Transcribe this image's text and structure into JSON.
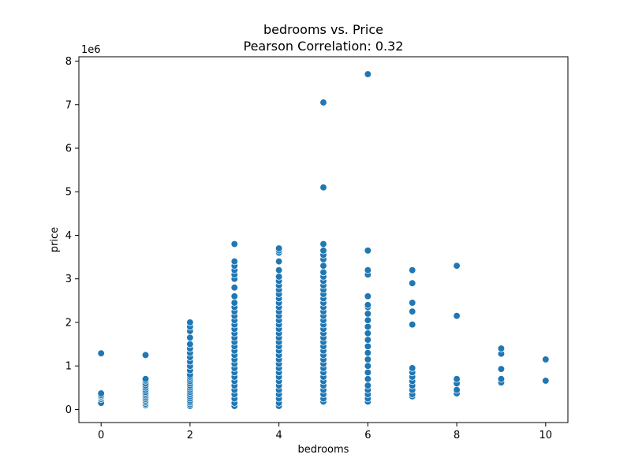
{
  "chart_data": {
    "type": "scatter",
    "title": "bedrooms vs. Price",
    "subtitle": "Pearson Correlation: 0.32",
    "xlabel": "bedrooms",
    "ylabel": "price",
    "y_offset_label": "1e6",
    "xlim": [
      -0.5,
      10.5
    ],
    "ylim": [
      -0.3,
      8.1
    ],
    "x_ticks": [
      0,
      2,
      4,
      6,
      8,
      10
    ],
    "y_ticks": [
      0,
      1,
      2,
      3,
      4,
      5,
      6,
      7,
      8
    ],
    "y_scale_factor": 1000000,
    "grid": false,
    "marker_color": "#1f77b4",
    "points": [
      {
        "x": 0,
        "y": [
          0.15,
          0.24,
          0.28,
          0.3,
          0.33,
          0.37,
          1.29
        ]
      },
      {
        "x": 1,
        "y": [
          0.1,
          0.13,
          0.17,
          0.2,
          0.24,
          0.28,
          0.32,
          0.36,
          0.4,
          0.45,
          0.5,
          0.55,
          0.6,
          0.66,
          0.7,
          1.25
        ]
      },
      {
        "x": 2,
        "y": [
          0.08,
          0.12,
          0.16,
          0.2,
          0.25,
          0.3,
          0.35,
          0.4,
          0.45,
          0.5,
          0.55,
          0.6,
          0.65,
          0.7,
          0.75,
          0.8,
          0.9,
          1.0,
          1.1,
          1.2,
          1.3,
          1.4,
          1.5,
          1.65,
          1.8,
          1.9,
          2.0
        ]
      },
      {
        "x": 3,
        "y": [
          0.08,
          0.15,
          0.25,
          0.35,
          0.45,
          0.55,
          0.65,
          0.75,
          0.85,
          0.95,
          1.05,
          1.15,
          1.25,
          1.35,
          1.45,
          1.55,
          1.65,
          1.75,
          1.85,
          1.95,
          2.05,
          2.15,
          2.25,
          2.35,
          2.45,
          2.6,
          2.8,
          3.0,
          3.1,
          3.2,
          3.3,
          3.4,
          3.8
        ]
      },
      {
        "x": 4,
        "y": [
          0.08,
          0.15,
          0.25,
          0.35,
          0.45,
          0.55,
          0.65,
          0.75,
          0.85,
          0.95,
          1.05,
          1.15,
          1.25,
          1.35,
          1.45,
          1.55,
          1.65,
          1.75,
          1.85,
          1.95,
          2.05,
          2.15,
          2.25,
          2.35,
          2.45,
          2.55,
          2.65,
          2.75,
          2.85,
          2.95,
          3.05,
          3.2,
          3.4,
          3.6,
          3.65,
          3.7
        ]
      },
      {
        "x": 5,
        "y": [
          0.18,
          0.25,
          0.35,
          0.45,
          0.55,
          0.65,
          0.75,
          0.85,
          0.95,
          1.05,
          1.15,
          1.25,
          1.35,
          1.45,
          1.55,
          1.65,
          1.75,
          1.85,
          1.95,
          2.05,
          2.15,
          2.25,
          2.35,
          2.45,
          2.55,
          2.65,
          2.75,
          2.85,
          2.95,
          3.05,
          3.15,
          3.3,
          3.45,
          3.55,
          3.65,
          3.8,
          5.1,
          7.05
        ]
      },
      {
        "x": 6,
        "y": [
          0.18,
          0.25,
          0.35,
          0.45,
          0.55,
          0.7,
          0.85,
          1.0,
          1.15,
          1.3,
          1.45,
          1.6,
          1.75,
          1.9,
          2.05,
          2.2,
          2.35,
          2.4,
          2.6,
          3.1,
          3.2,
          3.65,
          7.7
        ]
      },
      {
        "x": 7,
        "y": [
          0.3,
          0.35,
          0.45,
          0.55,
          0.65,
          0.75,
          0.85,
          0.95,
          1.95,
          2.25,
          2.45,
          2.9,
          3.2
        ]
      },
      {
        "x": 8,
        "y": [
          0.37,
          0.45,
          0.6,
          0.7,
          2.15,
          3.3
        ]
      },
      {
        "x": 9,
        "y": [
          0.62,
          0.7,
          0.93,
          1.28,
          1.4
        ]
      },
      {
        "x": 10,
        "y": [
          0.66,
          1.15
        ]
      }
    ]
  }
}
